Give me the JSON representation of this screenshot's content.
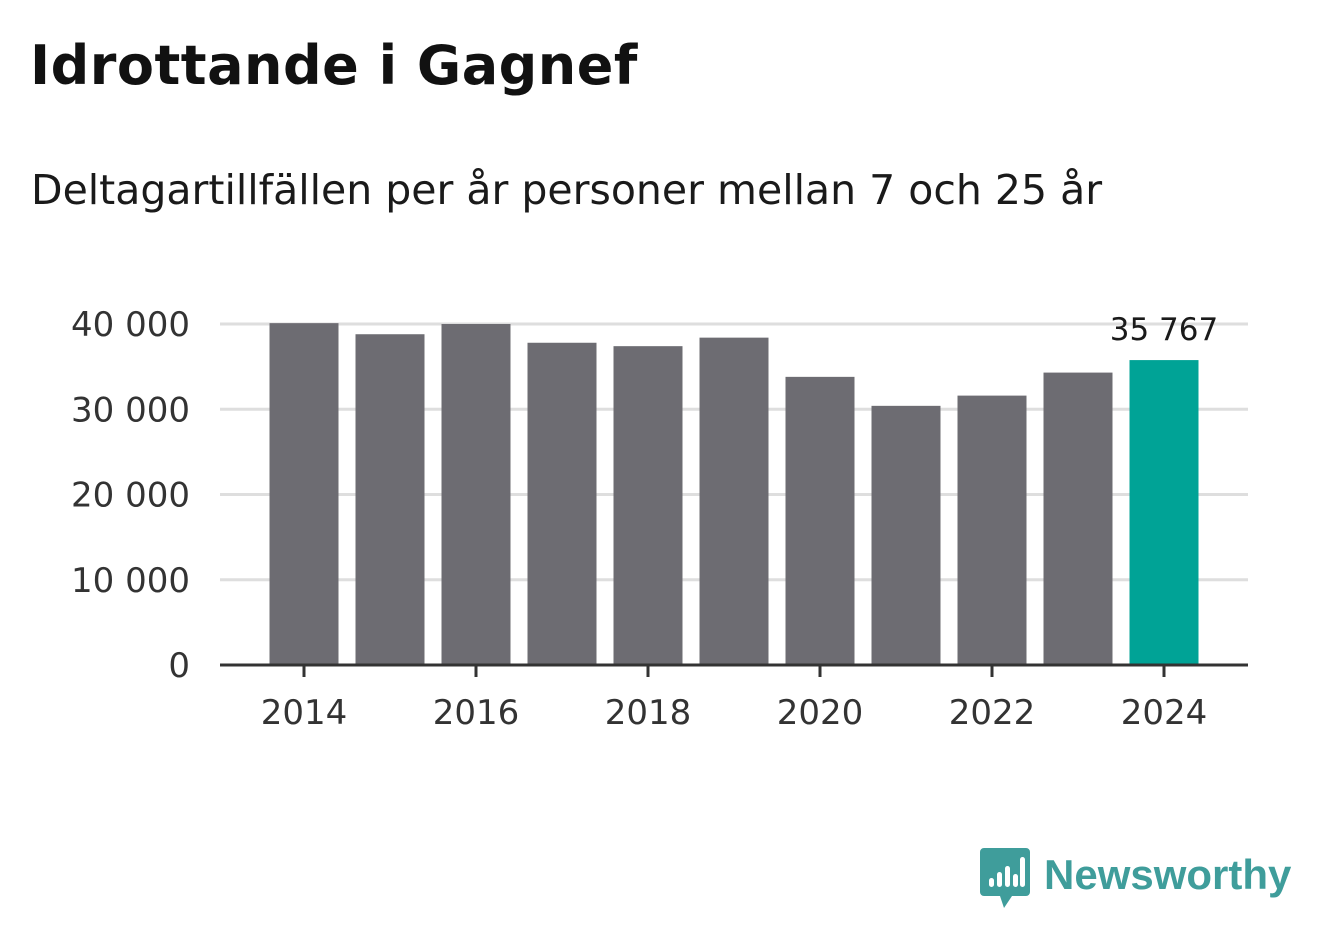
{
  "header": {
    "title": "Idrottande i Gagnef",
    "subtitle": "Deltagartillfällen per år personer mellan 7 och 25 år"
  },
  "brand": {
    "name": "Newsworthy",
    "color": "#3f9d9b",
    "icon": "newsworthy-logo-icon"
  },
  "colors": {
    "bar": "#6d6c72",
    "highlight": "#00a396",
    "grid": "#dedede",
    "axis": "#333333",
    "text": "#333333"
  },
  "chart_data": {
    "type": "bar",
    "title": "Idrottande i Gagnef",
    "subtitle": "Deltagartillfällen per år personer mellan 7 och 25 år",
    "xlabel": "",
    "ylabel": "",
    "ylim": [
      0,
      40000
    ],
    "yticks": [
      0,
      10000,
      20000,
      30000,
      40000
    ],
    "ytick_labels": [
      "0",
      "10 000",
      "20 000",
      "30 000",
      "40 000"
    ],
    "categories": [
      "2014",
      "2015",
      "2016",
      "2017",
      "2018",
      "2019",
      "2020",
      "2021",
      "2022",
      "2023",
      "2024"
    ],
    "xtick_labels": [
      "2014",
      "2016",
      "2018",
      "2020",
      "2022",
      "2024"
    ],
    "values": [
      40100,
      38800,
      40000,
      37800,
      37400,
      38400,
      33800,
      30400,
      31600,
      34300,
      35767
    ],
    "highlight_index": 10,
    "highlight_label": "35 767",
    "grid": true,
    "legend": "none"
  }
}
